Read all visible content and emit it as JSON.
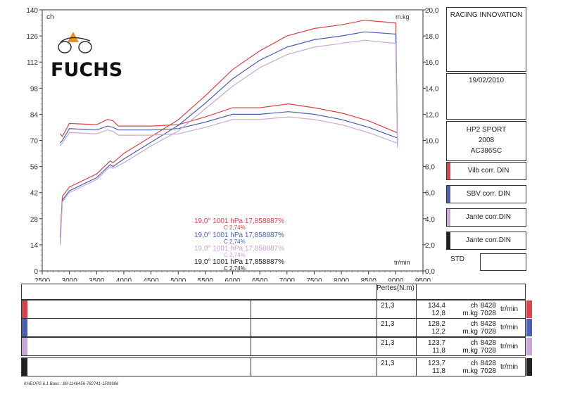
{
  "logo": {
    "text": "FUCHS"
  },
  "chart_data": {
    "type": "line",
    "xlabel": "tr/min",
    "ylabel_left": "ch",
    "ylabel_right": "m.kg",
    "xlim": [
      2500,
      9500
    ],
    "ylim_left": [
      0,
      140
    ],
    "ylim_right": [
      0,
      20
    ],
    "xticks": [
      2500,
      3000,
      3500,
      4000,
      4500,
      5000,
      5500,
      6000,
      6500,
      7000,
      7500,
      8000,
      8500,
      9000,
      9500
    ],
    "yticks_left": [
      0,
      14,
      28,
      42,
      56,
      70,
      84,
      98,
      112,
      126,
      140
    ],
    "yticks_right": [
      "0,0",
      "2,0",
      "4,0",
      "6,0",
      "8,0",
      "10,0",
      "12,0",
      "14,0",
      "16,0",
      "18,0",
      "20,0"
    ],
    "grid": false,
    "series": [
      {
        "name": "Vilb corr. DIN",
        "color": "#d9434a",
        "power": [
          [
            2830,
            18
          ],
          [
            2870,
            40
          ],
          [
            3000,
            45
          ],
          [
            3500,
            52
          ],
          [
            3750,
            59
          ],
          [
            3800,
            58
          ],
          [
            4000,
            63
          ],
          [
            4500,
            72
          ],
          [
            5000,
            81
          ],
          [
            5500,
            94
          ],
          [
            6000,
            108
          ],
          [
            6500,
            118
          ],
          [
            7000,
            126
          ],
          [
            7500,
            130
          ],
          [
            8000,
            132
          ],
          [
            8428,
            134.4
          ],
          [
            9000,
            133
          ],
          [
            9030,
            70
          ]
        ],
        "torque": [
          [
            2830,
            10.5
          ],
          [
            2870,
            10.3
          ],
          [
            3000,
            11.3
          ],
          [
            3500,
            11.2
          ],
          [
            3700,
            11.6
          ],
          [
            3800,
            11.5
          ],
          [
            3900,
            11.1
          ],
          [
            4500,
            11.1
          ],
          [
            5000,
            11.2
          ],
          [
            5500,
            11.8
          ],
          [
            6000,
            12.5
          ],
          [
            6500,
            12.5
          ],
          [
            7028,
            12.8
          ],
          [
            7500,
            12.5
          ],
          [
            8000,
            12.1
          ],
          [
            8500,
            11.5
          ],
          [
            9020,
            10.6
          ]
        ]
      },
      {
        "name": "SBV corr. DIN",
        "color": "#4a5fb5",
        "power": [
          [
            2830,
            15
          ],
          [
            2870,
            38
          ],
          [
            3000,
            43
          ],
          [
            3500,
            50
          ],
          [
            3750,
            57
          ],
          [
            3800,
            56
          ],
          [
            4000,
            60
          ],
          [
            4500,
            69
          ],
          [
            5000,
            78
          ],
          [
            5500,
            90
          ],
          [
            6000,
            103
          ],
          [
            6500,
            113
          ],
          [
            7000,
            120
          ],
          [
            7500,
            124
          ],
          [
            8000,
            126
          ],
          [
            8428,
            128.2
          ],
          [
            9000,
            127
          ],
          [
            9030,
            68
          ]
        ],
        "torque": [
          [
            2830,
            9.8
          ],
          [
            2870,
            10.0
          ],
          [
            3000,
            10.9
          ],
          [
            3500,
            10.8
          ],
          [
            3700,
            11.1
          ],
          [
            3800,
            11.0
          ],
          [
            3900,
            10.8
          ],
          [
            4500,
            10.8
          ],
          [
            5000,
            10.9
          ],
          [
            5500,
            11.4
          ],
          [
            6000,
            12.0
          ],
          [
            6500,
            12.0
          ],
          [
            7028,
            12.2
          ],
          [
            7500,
            12.0
          ],
          [
            8000,
            11.6
          ],
          [
            8500,
            11.0
          ],
          [
            9020,
            10.2
          ]
        ]
      },
      {
        "name": "Jante corr.DIN",
        "color": "#c9a7d8",
        "power": [
          [
            2830,
            14
          ],
          [
            2870,
            37
          ],
          [
            3000,
            42
          ],
          [
            3500,
            49
          ],
          [
            3750,
            56
          ],
          [
            3800,
            55
          ],
          [
            4000,
            58
          ],
          [
            4500,
            67
          ],
          [
            5000,
            75
          ],
          [
            5500,
            87
          ],
          [
            6000,
            99
          ],
          [
            6500,
            109
          ],
          [
            7000,
            116
          ],
          [
            7500,
            120
          ],
          [
            8000,
            122
          ],
          [
            8428,
            123.7
          ],
          [
            9000,
            122
          ],
          [
            9030,
            66
          ]
        ],
        "torque": [
          [
            2830,
            9.6
          ],
          [
            2870,
            9.8
          ],
          [
            3000,
            10.6
          ],
          [
            3500,
            10.5
          ],
          [
            3700,
            10.8
          ],
          [
            3800,
            10.7
          ],
          [
            3900,
            10.4
          ],
          [
            4500,
            10.4
          ],
          [
            5000,
            10.5
          ],
          [
            5500,
            11.0
          ],
          [
            6000,
            11.6
          ],
          [
            6500,
            11.6
          ],
          [
            7028,
            11.8
          ],
          [
            7500,
            11.6
          ],
          [
            8000,
            11.2
          ],
          [
            8500,
            10.6
          ],
          [
            9020,
            9.8
          ]
        ]
      }
    ],
    "annotations": [
      {
        "line1": "19,0°   1001 hPa   17,858887%",
        "line2": "C 2,74%",
        "color": "#d9434a"
      },
      {
        "line1": "19,0°   1001 hPa   17,858887%",
        "line2": "C 2,74%",
        "color": "#4a5fb5"
      },
      {
        "line1": "19,0°   1001 hPa   17,858887%",
        "line2": "C 2,74%",
        "color": "#c9a7d8"
      },
      {
        "line1": "19,0°   1001 hPa   17,858887%",
        "line2": "C 2,74%",
        "color": "#222222"
      }
    ]
  },
  "side": {
    "company": "RACING INNOVATION",
    "date": "19/02/2010",
    "bike_model": "HP2 SPORT",
    "bike_year": "2008",
    "bike_code": "AC386SC",
    "std_label": "STD"
  },
  "legend": [
    {
      "label": "Vilb corr. DIN",
      "color": "#d9434a"
    },
    {
      "label": "SBV corr. DIN",
      "color": "#4a5fb5"
    },
    {
      "label": "Jante corr.DIN",
      "color": "#c9a7d8"
    },
    {
      "label": "Jante corr.DIN",
      "color": "#222222"
    }
  ],
  "table": {
    "pertes_label": "Pertes(N.m)",
    "rows": [
      {
        "color": "#d9434a",
        "pertes": "21,3",
        "power": "134,4",
        "torque": "12,8",
        "unit_power": "ch",
        "unit_torque": "m.kg",
        "rpm_power": "8428",
        "rpm_torque": "7028",
        "rpm_unit": "tr/min"
      },
      {
        "color": "#4a5fb5",
        "pertes": "21,3",
        "power": "128,2",
        "torque": "12,2",
        "unit_power": "ch",
        "unit_torque": "m.kg",
        "rpm_power": "8428",
        "rpm_torque": "7028",
        "rpm_unit": "tr/min"
      },
      {
        "color": "#c9a7d8",
        "pertes": "21,3",
        "power": "123,7",
        "torque": "11,8",
        "unit_power": "ch",
        "unit_torque": "m.kg",
        "rpm_power": "8428",
        "rpm_torque": "7028",
        "rpm_unit": "tr/min"
      },
      {
        "color": "#222222",
        "pertes": "21,3",
        "power": "123,7",
        "torque": "11,8",
        "unit_power": "ch",
        "unit_torque": "m.kg",
        "rpm_power": "8428",
        "rpm_torque": "7028",
        "rpm_unit": "tr/min"
      }
    ]
  },
  "footer": "KHEOPS 6.1  Banc : 88-1146456-782741-1509986"
}
